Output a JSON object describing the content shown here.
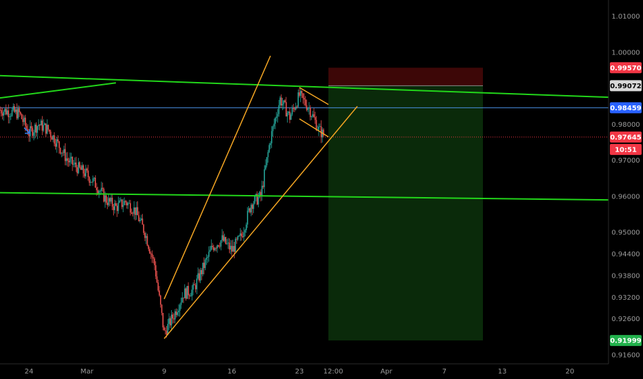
{
  "chart_data": {
    "type": "candlestick",
    "title": "",
    "xlabel": "",
    "ylabel": "",
    "ylim": [
      0.9135,
      1.0145
    ],
    "x_range": [
      "2020-02-21",
      "2020-04-24"
    ],
    "x_ticks": [
      {
        "label": "24",
        "date": "2020-02-24"
      },
      {
        "label": "Mar",
        "date": "2020-03-01"
      },
      {
        "label": "9",
        "date": "2020-03-09"
      },
      {
        "label": "16",
        "date": "2020-03-16"
      },
      {
        "label": "23",
        "date": "2020-03-23"
      },
      {
        "label": "12:00",
        "date": "2020-03-26T12:00"
      },
      {
        "label": "Apr",
        "date": "2020-04-01"
      },
      {
        "label": "7",
        "date": "2020-04-07"
      },
      {
        "label": "13",
        "date": "2020-04-13"
      },
      {
        "label": "20",
        "date": "2020-04-20"
      }
    ],
    "y_ticks": [
      "1.01000",
      "1.00000",
      "0.98000",
      "0.97000",
      "0.96000",
      "0.95000",
      "0.94400",
      "0.93800",
      "0.93200",
      "0.92600",
      "0.91600"
    ],
    "price_path": [
      {
        "date": "2020-02-21",
        "price": 0.984
      },
      {
        "date": "2020-02-23",
        "price": 0.983
      },
      {
        "date": "2020-02-24",
        "price": 0.9775
      },
      {
        "date": "2020-02-25",
        "price": 0.98
      },
      {
        "date": "2020-02-26",
        "price": 0.9785
      },
      {
        "date": "2020-02-27",
        "price": 0.9745
      },
      {
        "date": "2020-02-28",
        "price": 0.97
      },
      {
        "date": "2020-03-01",
        "price": 0.966
      },
      {
        "date": "2020-03-02",
        "price": 0.963
      },
      {
        "date": "2020-03-03",
        "price": 0.959
      },
      {
        "date": "2020-03-04",
        "price": 0.957
      },
      {
        "date": "2020-03-05",
        "price": 0.9585
      },
      {
        "date": "2020-03-06",
        "price": 0.956
      },
      {
        "date": "2020-03-07",
        "price": 0.95
      },
      {
        "date": "2020-03-08",
        "price": 0.941
      },
      {
        "date": "2020-03-09",
        "price": 0.922
      },
      {
        "date": "2020-03-10",
        "price": 0.927
      },
      {
        "date": "2020-03-11",
        "price": 0.933
      },
      {
        "date": "2020-03-12",
        "price": 0.934
      },
      {
        "date": "2020-03-13",
        "price": 0.94
      },
      {
        "date": "2020-03-14",
        "price": 0.946
      },
      {
        "date": "2020-03-15",
        "price": 0.948
      },
      {
        "date": "2020-03-16",
        "price": 0.945
      },
      {
        "date": "2020-03-17",
        "price": 0.949
      },
      {
        "date": "2020-03-18",
        "price": 0.958
      },
      {
        "date": "2020-03-19",
        "price": 0.96
      },
      {
        "date": "2020-03-20",
        "price": 0.976
      },
      {
        "date": "2020-03-21",
        "price": 0.987
      },
      {
        "date": "2020-03-22",
        "price": 0.982
      },
      {
        "date": "2020-03-23",
        "price": 0.988
      },
      {
        "date": "2020-03-24",
        "price": 0.9845
      },
      {
        "date": "2020-03-25",
        "price": 0.9785
      },
      {
        "date": "2020-03-25T12:00",
        "price": 0.977
      }
    ],
    "horizontal_lines": [
      {
        "price": 0.98459,
        "color": "#4a90e2",
        "style": "solid"
      },
      {
        "price": 0.97645,
        "color": "#f23645",
        "style": "dotted"
      }
    ],
    "trend_lines": [
      {
        "color": "#22d61a",
        "from": {
          "date": "2020-02-21",
          "price": 0.9935
        },
        "to": {
          "date": "2020-04-24",
          "price": 0.9875
        }
      },
      {
        "color": "#22d61a",
        "from": {
          "date": "2020-02-21",
          "price": 0.9873
        },
        "to": {
          "date": "2020-03-04",
          "price": 0.9915
        }
      },
      {
        "color": "#22d61a",
        "from": {
          "date": "2020-02-21",
          "price": 0.961
        },
        "to": {
          "date": "2020-04-24",
          "price": 0.959
        }
      },
      {
        "color": "#f5a623",
        "from": {
          "date": "2020-03-09",
          "price": 0.9315
        },
        "to": {
          "date": "2020-03-20",
          "price": 0.999
        }
      },
      {
        "color": "#f5a623",
        "from": {
          "date": "2020-03-09",
          "price": 0.9205
        },
        "to": {
          "date": "2020-03-29",
          "price": 0.985
        }
      },
      {
        "color": "#f5a623",
        "from": {
          "date": "2020-03-23",
          "price": 0.9902
        },
        "to": {
          "date": "2020-03-26",
          "price": 0.9855
        }
      },
      {
        "color": "#f5a623",
        "from": {
          "date": "2020-03-23",
          "price": 0.9815
        },
        "to": {
          "date": "2020-03-26",
          "price": 0.9765
        }
      }
    ],
    "position": {
      "type": "short",
      "start": "2020-03-26",
      "end": "2020-04-11",
      "stop": 0.9957,
      "entry": 0.99072,
      "target": 0.91999,
      "stop_color": "#3d0707",
      "target_color": "#0a2a0a"
    },
    "price_tags": [
      {
        "value": "0.99570",
        "price": 0.9957,
        "color": "#f23645",
        "text_color": "#ffffff"
      },
      {
        "value": "0.99072",
        "price": 0.99072,
        "color": "#d9d9d9",
        "text_color": "#000000"
      },
      {
        "value": "0.98459",
        "price": 0.98459,
        "color": "#2962ff",
        "text_color": "#ffffff"
      },
      {
        "value": "0.97645",
        "price": 0.97645,
        "color": "#f23645",
        "text_color": "#ffffff"
      },
      {
        "value": "10:51",
        "price": 0.97645,
        "color": "#f23645",
        "text_color": "#ffffff",
        "below": true
      },
      {
        "value": "0.91999",
        "price": 0.91999,
        "color": "#22b14c",
        "text_color": "#ffffff"
      }
    ],
    "arrow_marker": {
      "date": "2020-02-24",
      "price": 0.9775,
      "color": "#2f80ed"
    }
  }
}
